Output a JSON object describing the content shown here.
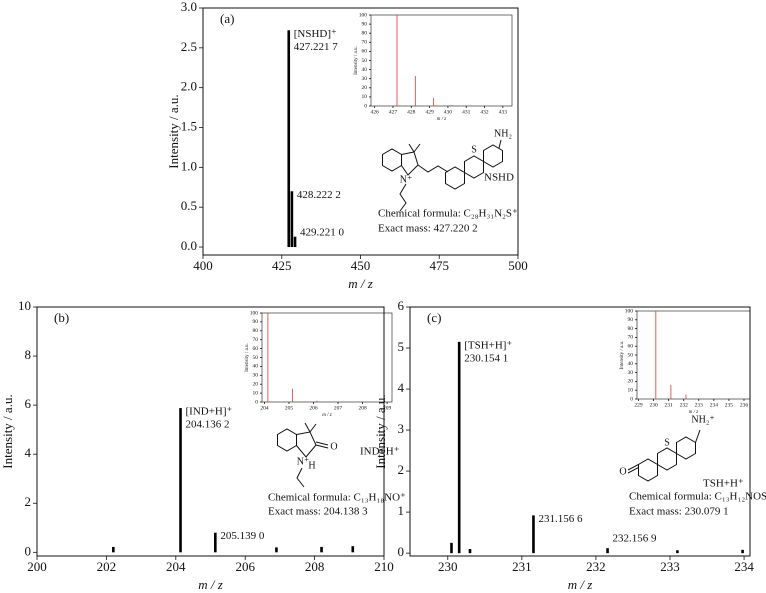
{
  "chart_data": [
    {
      "type": "bar",
      "panel": "(a)",
      "xlabel": "m / z",
      "ylabel": "Intensity / a.u.",
      "xlim": [
        400,
        500
      ],
      "xticks": [
        400,
        425,
        450,
        475,
        500
      ],
      "ylim": [
        -0.1,
        3.0
      ],
      "yticks": [
        {
          "value": 0,
          "label": "0.0"
        },
        {
          "value": 0.5,
          "label": "0.5"
        },
        {
          "value": 1,
          "label": "1.0"
        },
        {
          "value": 1.5,
          "label": "1.5"
        },
        {
          "value": 2,
          "label": "2.0"
        },
        {
          "value": 2.5,
          "label": "2.5"
        },
        {
          "value": 3,
          "label": "3.0"
        }
      ],
      "color": "#000000",
      "x": [
        427.2217,
        428.2222,
        429.221
      ],
      "values": [
        2.72,
        0.7,
        0.13
      ],
      "x_labels": [
        "427.221 7",
        "428.222 2",
        "429.221 0"
      ],
      "ion": "[NSHD]⁺",
      "compound": "NSHD",
      "atoms": [
        "N⁺",
        "S",
        "NH₂"
      ],
      "formula": "Chemical formula: C₂₈H₃₁N₂S⁺",
      "exact_mass": "Exact mass: 427.220 2"
    },
    {
      "type": "bar",
      "xlabel": "m / z",
      "ylabel": "Intensity / a.u.",
      "xlim": [
        425.8,
        433.5
      ],
      "xticks": [
        426,
        427,
        428,
        429,
        430,
        431,
        432,
        433
      ],
      "ylim": [
        0,
        100
      ],
      "yticks": [
        0,
        10,
        20,
        30,
        40,
        50,
        60,
        70,
        80,
        90,
        100
      ],
      "color": "#e0392b",
      "x": [
        427.22,
        428.22,
        429.22,
        430.22
      ],
      "values": [
        100,
        33,
        9,
        1
      ]
    },
    {
      "type": "bar",
      "panel": "(b)",
      "xlabel": "m / z",
      "ylabel": "Intensity / a.u.",
      "xlim": [
        200,
        210
      ],
      "xticks": [
        200,
        202,
        204,
        206,
        208,
        210
      ],
      "ylim": [
        -0.15,
        10
      ],
      "yticks": [
        0,
        2,
        4,
        6,
        8,
        10
      ],
      "color": "#000000",
      "x": [
        202.2,
        204.1362,
        205.139,
        206.9,
        208.2,
        209.1
      ],
      "values": [
        0.22,
        5.88,
        0.8,
        0.2,
        0.22,
        0.25
      ],
      "x_labels": [
        null,
        "204.136 2",
        "205.139 0",
        null,
        null,
        null
      ],
      "ion": "[IND+H]⁺",
      "compound": "IND+H⁺",
      "atoms": [
        "N⁺",
        "H",
        "O"
      ],
      "formula": "Chemical formula: C₁₃H₁₈NO⁺",
      "exact_mass": "Exact mass: 204.138 3"
    },
    {
      "type": "bar",
      "xlabel": "m / z",
      "ylabel": "Intensity / a.u.",
      "xlim": [
        203.9,
        209.2
      ],
      "xticks": [
        204,
        205,
        206,
        207,
        208,
        209
      ],
      "ylim": [
        0,
        100
      ],
      "yticks": [
        0,
        10,
        20,
        30,
        40,
        50,
        60,
        70,
        80,
        90,
        100
      ],
      "color": "#e0392b",
      "x": [
        204.14,
        205.14,
        206.14
      ],
      "values": [
        100,
        15,
        1.5
      ]
    },
    {
      "type": "bar",
      "panel": "(c)",
      "xlabel": "m / z",
      "ylabel": "Intensity / a.u.",
      "xlim": [
        229.49,
        234.08
      ],
      "xticks": [
        230,
        231,
        232,
        233,
        234
      ],
      "ylim": [
        -0.07,
        6
      ],
      "yticks": [
        0,
        1,
        2,
        3,
        4,
        5,
        6
      ],
      "color": "#000000",
      "x": [
        230.05,
        230.1541,
        230.3,
        231.1566,
        232.1569,
        233.1,
        233.98
      ],
      "values": [
        0.25,
        5.15,
        0.1,
        0.92,
        0.12,
        0.07,
        0.08
      ],
      "x_labels": [
        null,
        "230.154 1",
        null,
        "231.156 6",
        "232.156 9",
        null,
        null
      ],
      "ion": "[TSH+H]⁺",
      "compound": "TSH+H⁺",
      "atoms": [
        "O",
        "S",
        "NH₂⁺"
      ],
      "formula": "Chemical formula: C₁₃H₁₂NOS⁺",
      "exact_mass": "Exact mass: 230.079 1"
    },
    {
      "type": "bar",
      "xlabel": "m / z",
      "ylabel": "Intensity / a.u.",
      "xlim": [
        228.9,
        236.4
      ],
      "xticks": [
        229,
        230,
        231,
        232,
        233,
        234,
        235,
        236
      ],
      "ylim": [
        0,
        100
      ],
      "yticks": [
        0,
        10,
        20,
        30,
        40,
        50,
        60,
        70,
        80,
        90,
        100
      ],
      "color": "#e0392b",
      "x": [
        230.15,
        231.15,
        232.15
      ],
      "values": [
        100,
        16,
        5
      ]
    }
  ]
}
